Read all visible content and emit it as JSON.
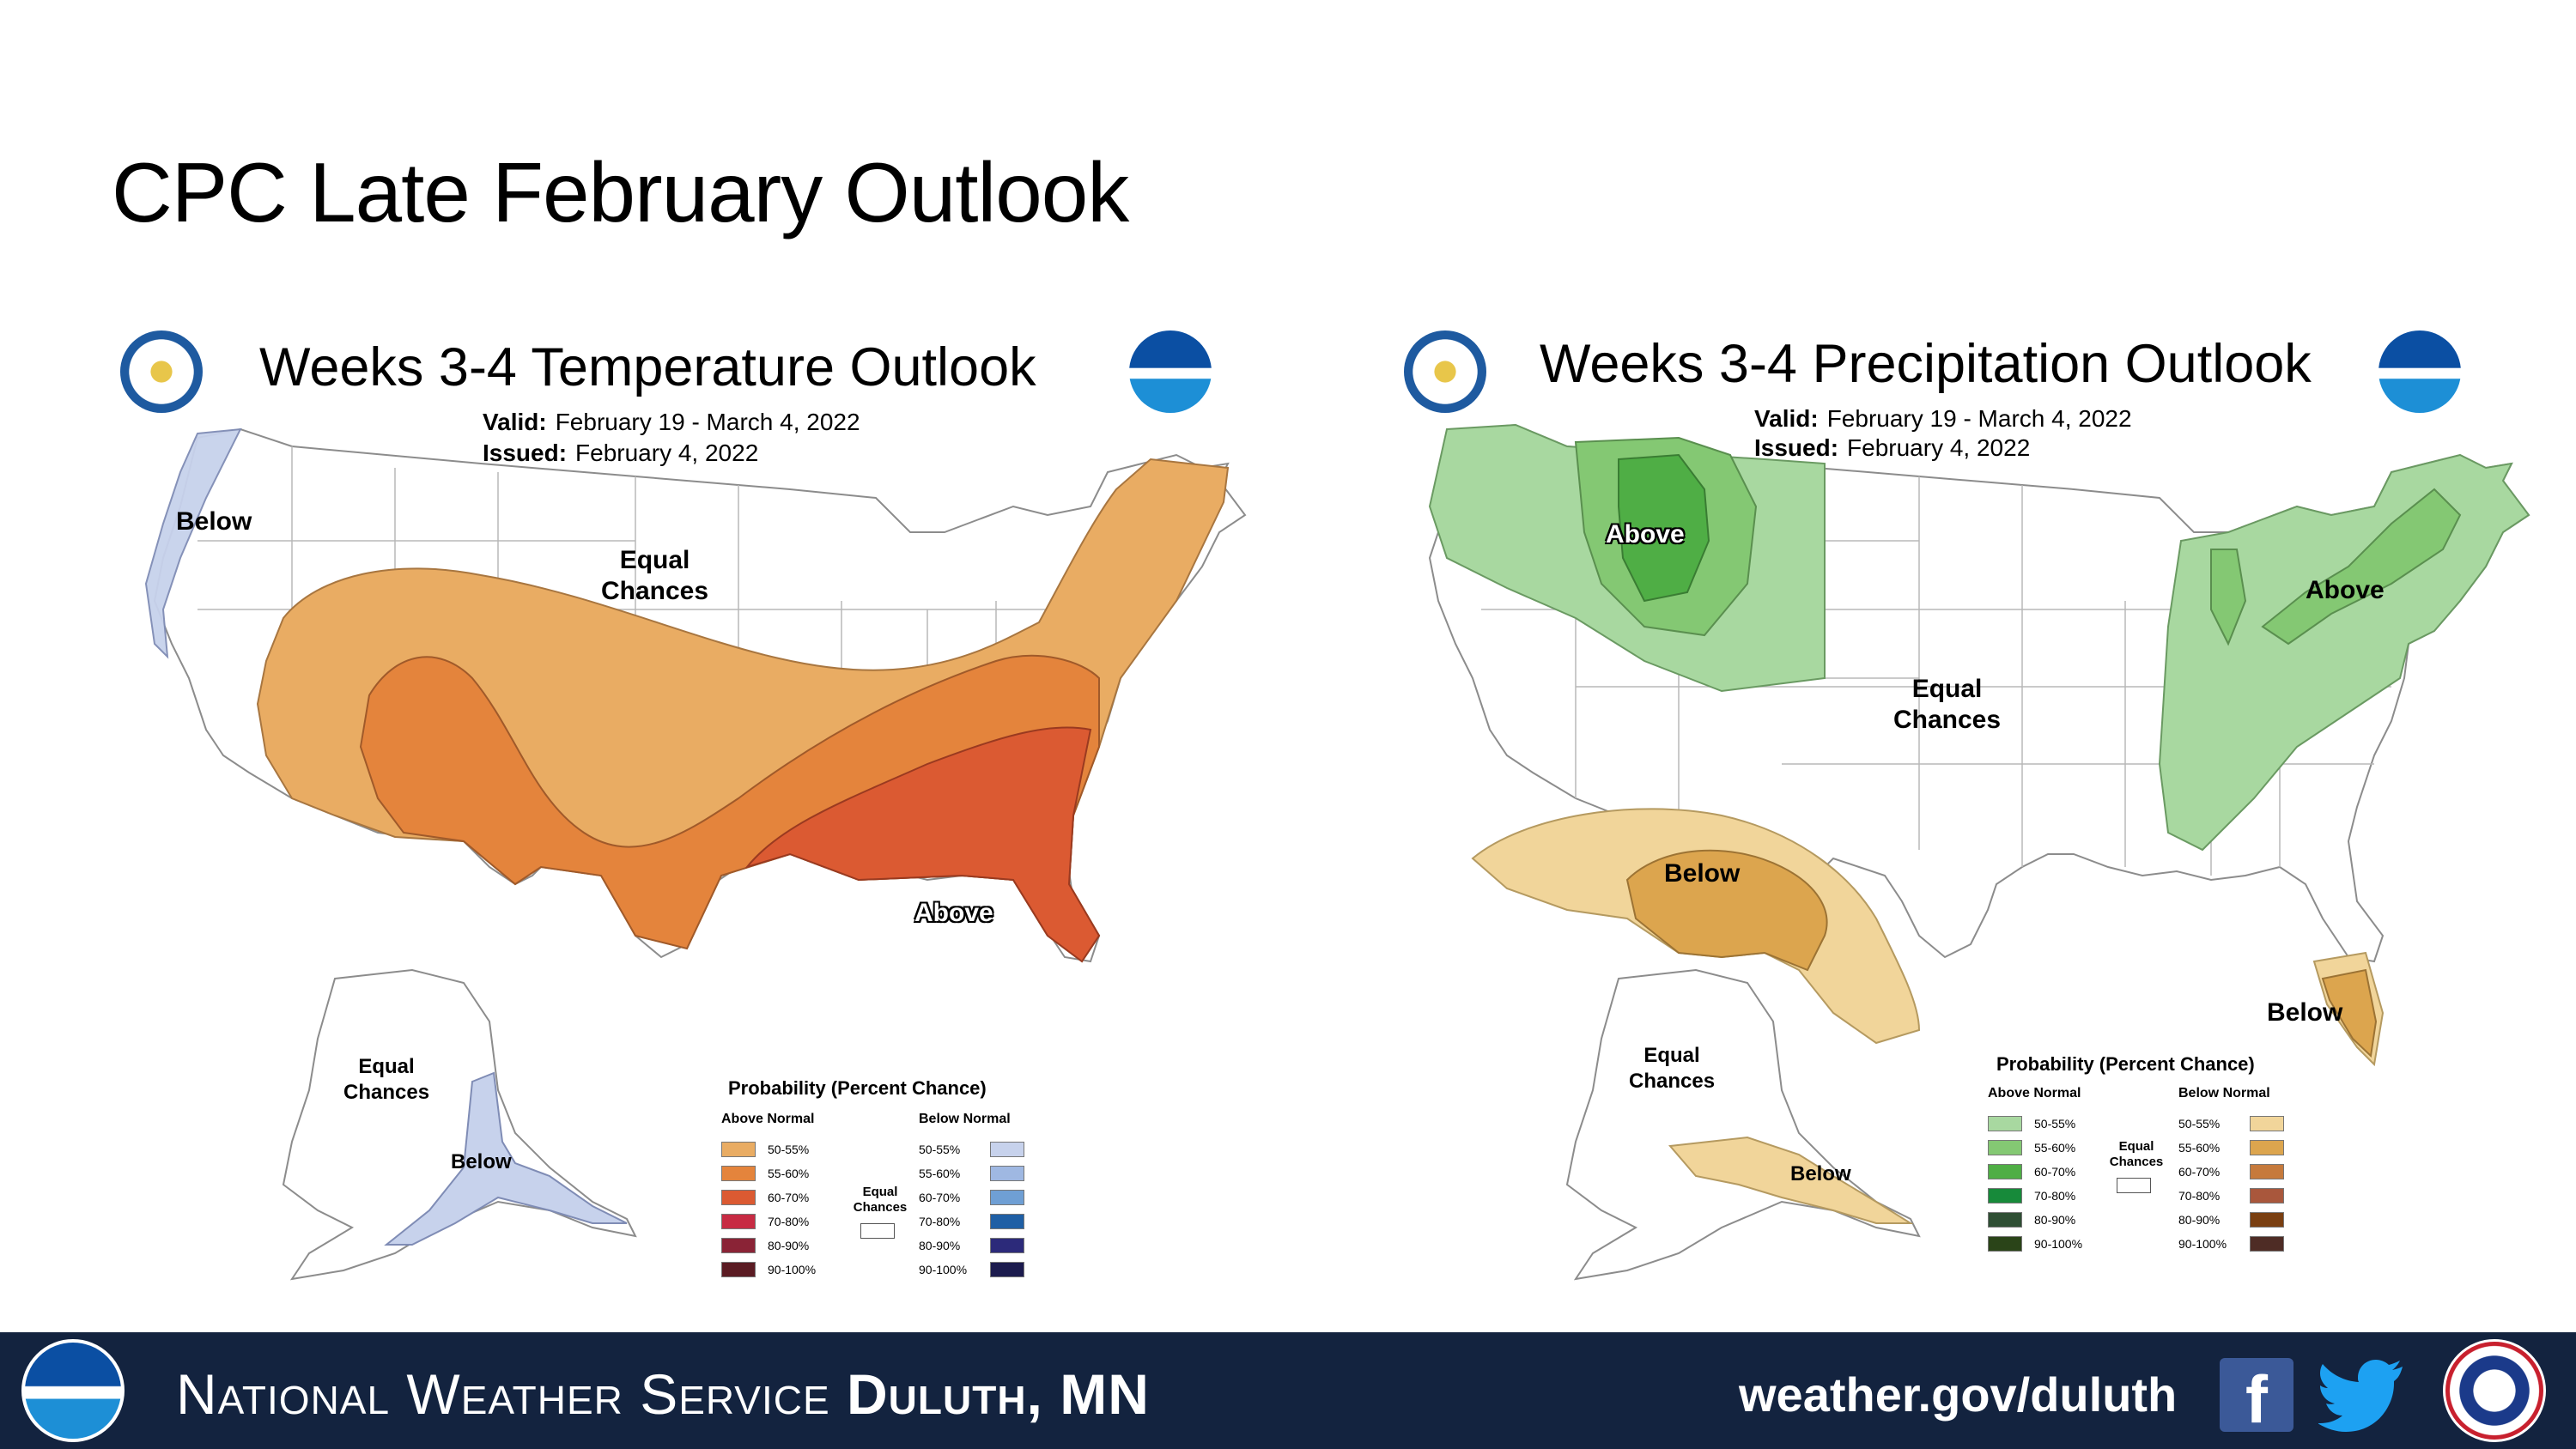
{
  "slide": {
    "title": "CPC Late February Outlook"
  },
  "temperature": {
    "title": "Weeks 3-4 Temperature Outlook",
    "valid_label": "Valid:",
    "valid_value": "February 19 - March 4, 2022",
    "issued_label": "Issued:",
    "issued_value": "February 4, 2022",
    "labels": {
      "below_nw": "Below",
      "equal_north_1": "Equal",
      "equal_north_2": "Chances",
      "above_se": "Above",
      "ak_equal_1": "Equal",
      "ak_equal_2": "Chances",
      "ak_below": "Below"
    },
    "legend": {
      "title": "Probability (Percent Chance)",
      "above_header": "Above Normal",
      "below_header": "Below Normal",
      "equal_1": "Equal",
      "equal_2": "Chances",
      "above": [
        {
          "label": "50-55%",
          "color": "#e9ac63"
        },
        {
          "label": "55-60%",
          "color": "#e4843c"
        },
        {
          "label": "60-70%",
          "color": "#db5a32"
        },
        {
          "label": "70-80%",
          "color": "#c72b43"
        },
        {
          "label": "80-90%",
          "color": "#8a2336"
        },
        {
          "label": "90-100%",
          "color": "#5b1b23"
        }
      ],
      "below": [
        {
          "label": "50-55%",
          "color": "#c7d2ec"
        },
        {
          "label": "55-60%",
          "color": "#9fb8e2"
        },
        {
          "label": "60-70%",
          "color": "#6f9fd4"
        },
        {
          "label": "70-80%",
          "color": "#1f5fa5"
        },
        {
          "label": "80-90%",
          "color": "#2c2a7a"
        },
        {
          "label": "90-100%",
          "color": "#1c1b4e"
        }
      ]
    }
  },
  "precipitation": {
    "title": "Weeks 3-4 Precipitation Outlook",
    "valid_label": "Valid:",
    "valid_value": "February 19 - March 4, 2022",
    "issued_label": "Issued:",
    "issued_value": "February 4, 2022",
    "labels": {
      "above_nw": "Above",
      "above_ne": "Above",
      "equal_center_1": "Equal",
      "equal_center_2": "Chances",
      "below_sw": "Below",
      "below_fl": "Below",
      "ak_equal_1": "Equal",
      "ak_equal_2": "Chances",
      "ak_below": "Below"
    },
    "legend": {
      "title": "Probability (Percent Chance)",
      "above_header": "Above Normal",
      "below_header": "Below Normal",
      "equal_1": "Equal",
      "equal_2": "Chances",
      "above": [
        {
          "label": "50-55%",
          "color": "#a8d8a0"
        },
        {
          "label": "55-60%",
          "color": "#84c873"
        },
        {
          "label": "60-70%",
          "color": "#4fae45"
        },
        {
          "label": "70-80%",
          "color": "#178a3a"
        },
        {
          "label": "80-90%",
          "color": "#2f4f34"
        },
        {
          "label": "90-100%",
          "color": "#2a4418"
        }
      ],
      "below": [
        {
          "label": "50-55%",
          "color": "#f1d59a"
        },
        {
          "label": "55-60%",
          "color": "#dca54e"
        },
        {
          "label": "60-70%",
          "color": "#c67a3c"
        },
        {
          "label": "70-80%",
          "color": "#a9573c"
        },
        {
          "label": "80-90%",
          "color": "#7a3f11"
        },
        {
          "label": "90-100%",
          "color": "#4e2c25"
        }
      ]
    }
  },
  "footer": {
    "nws_text": "National Weather Service",
    "office": "Duluth, MN",
    "url": "weather.gov/duluth",
    "bg_color": "#13233f"
  }
}
